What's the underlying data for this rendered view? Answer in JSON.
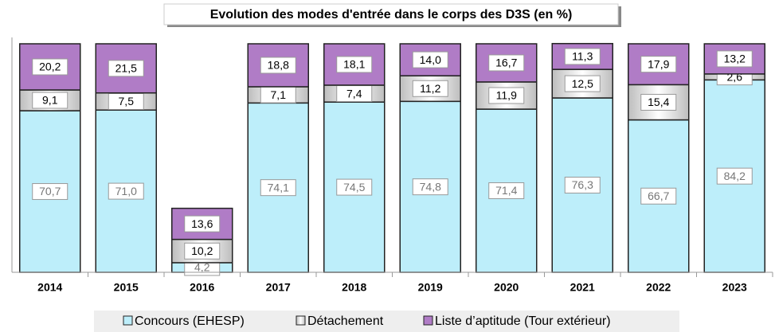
{
  "chart_data": {
    "type": "stacked_bar",
    "title": "Evolution des modes d'entrée dans le corps des D3S (en %)",
    "categories": [
      "2014",
      "2015",
      "2016",
      "2017",
      "2018",
      "2019",
      "2020",
      "2021",
      "2022",
      "2023"
    ],
    "ylim": [
      0,
      100
    ],
    "legend": "bottom",
    "series": [
      {
        "name": "Concours (EHESP)",
        "color": "#bdeefa",
        "values": [
          70.7,
          71.0,
          4.2,
          74.1,
          74.5,
          74.8,
          71.4,
          76.3,
          66.7,
          84.2
        ],
        "value_labels": [
          "70,7",
          "71,0",
          "4,2",
          "74,1",
          "74,5",
          "74,8",
          "71,4",
          "76,3",
          "66,7",
          "84,2"
        ]
      },
      {
        "name": "Détachement",
        "color": "#e4e4e4",
        "values": [
          9.1,
          7.5,
          10.2,
          7.1,
          7.4,
          11.2,
          11.9,
          12.5,
          15.4,
          2.6
        ],
        "value_labels": [
          "9,1",
          "7,5",
          "10,2",
          "7,1",
          "7,4",
          "11,2",
          "11,9",
          "12,5",
          "15,4",
          "2,6"
        ]
      },
      {
        "name": "Liste d’aptitude (Tour extérieur)",
        "color": "#b07cc6",
        "values": [
          20.2,
          21.5,
          13.6,
          18.8,
          18.1,
          14.0,
          16.7,
          11.3,
          17.9,
          13.2
        ],
        "value_labels": [
          "20,2",
          "21,5",
          "13,6",
          "18,8",
          "18,1",
          "14,0",
          "16,7",
          "11,3",
          "17,9",
          "13,2"
        ]
      }
    ]
  }
}
